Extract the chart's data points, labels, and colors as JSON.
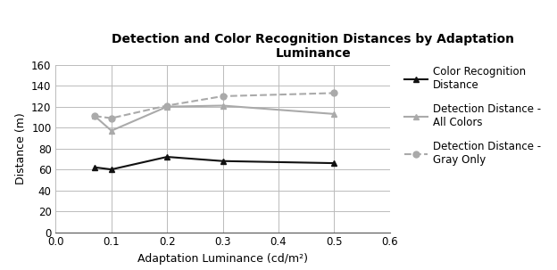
{
  "title": "Detection and Color Recognition Distances by Adaptation\nLuminance",
  "xlabel": "Adaptation Luminance (cd/m²)",
  "ylabel": "Distance (m)",
  "xlim": [
    0,
    0.6
  ],
  "ylim": [
    0,
    160
  ],
  "xticks": [
    0,
    0.1,
    0.2,
    0.3,
    0.4,
    0.5,
    0.6
  ],
  "yticks": [
    0,
    20,
    40,
    60,
    80,
    100,
    120,
    140,
    160
  ],
  "color_recognition": {
    "x": [
      0.07,
      0.1,
      0.2,
      0.3,
      0.5
    ],
    "y": [
      62,
      60,
      72,
      68,
      66
    ],
    "color": "#111111",
    "marker": "^",
    "markersize": 5,
    "linestyle": "-",
    "linewidth": 1.5,
    "label": "Color Recognition\nDistance"
  },
  "detection_all": {
    "x": [
      0.07,
      0.1,
      0.2,
      0.3,
      0.5
    ],
    "y": [
      111,
      97,
      120,
      121,
      113
    ],
    "color": "#aaaaaa",
    "marker": "^",
    "markersize": 5,
    "linestyle": "-",
    "linewidth": 1.5,
    "label": "Detection Distance -\nAll Colors"
  },
  "detection_gray": {
    "x": [
      0.07,
      0.1,
      0.2,
      0.3,
      0.5
    ],
    "y": [
      111,
      109,
      121,
      130,
      133
    ],
    "color": "#aaaaaa",
    "marker": "o",
    "markersize": 5,
    "linestyle": "--",
    "linewidth": 1.5,
    "label": "Detection Distance -\nGray Only"
  },
  "background_color": "#ffffff",
  "title_fontsize": 10,
  "axis_label_fontsize": 9,
  "tick_fontsize": 8.5,
  "legend_fontsize": 8.5,
  "figsize": [
    6.24,
    3.03
  ],
  "dpi": 100
}
